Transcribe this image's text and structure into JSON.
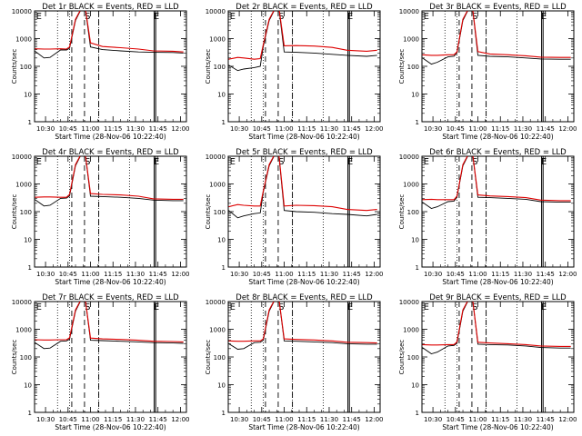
{
  "figure": {
    "xlabel": "Start Time (28-Nov-06 10:22:40)",
    "ylabel": "Counts/sec",
    "colors": {
      "events": "#000000",
      "lld": "#dd0000"
    },
    "marker_labels": [
      "E",
      "S",
      "E"
    ]
  },
  "chart_data": [
    {
      "type": "line",
      "title": "Det 1r BLACK = Events, RED = LLD",
      "x_ticks": [
        "10:30",
        "10:45",
        "11:00",
        "11:15",
        "11:30",
        "11:45",
        "12:00"
      ],
      "y_ticks": [
        "1",
        "10",
        "100",
        "1000",
        "10000"
      ],
      "ylim": [
        1,
        10000
      ],
      "yscale": "log",
      "x": [
        "10:23",
        "10:29",
        "10:33",
        "10:40",
        "10:44",
        "10:46",
        "10:50",
        "10:56",
        "11:00",
        "11:08",
        "11:20",
        "11:32",
        "11:42",
        "11:55",
        "12:02"
      ],
      "series": [
        {
          "name": "Events",
          "values": [
            350,
            200,
            210,
            390,
            390,
            450,
            4500,
            20000,
            500,
            400,
            360,
            330,
            320,
            315,
            300
          ]
        },
        {
          "name": "LLD",
          "values": [
            430,
            420,
            420,
            430,
            420,
            500,
            5000,
            20000,
            700,
            520,
            470,
            420,
            360,
            350,
            330
          ]
        }
      ]
    },
    {
      "type": "line",
      "title": "Det 2r BLACK = Events, RED = LLD",
      "x_ticks": [
        "10:30",
        "10:45",
        "11:00",
        "11:15",
        "11:30",
        "11:45",
        "12:00"
      ],
      "y_ticks": [
        "1",
        "10",
        "100",
        "1000",
        "10000"
      ],
      "ylim": [
        1,
        10000
      ],
      "yscale": "log",
      "x": [
        "10:23",
        "10:29",
        "10:33",
        "10:40",
        "10:44",
        "10:46",
        "10:50",
        "10:56",
        "11:00",
        "11:08",
        "11:20",
        "11:32",
        "11:42",
        "11:55",
        "12:02"
      ],
      "series": [
        {
          "name": "Events",
          "values": [
            110,
            70,
            80,
            90,
            100,
            520,
            4500,
            20000,
            330,
            320,
            300,
            270,
            250,
            230,
            250
          ]
        },
        {
          "name": "LLD",
          "values": [
            180,
            210,
            200,
            180,
            190,
            600,
            5000,
            20000,
            550,
            560,
            540,
            480,
            380,
            350,
            380
          ]
        }
      ]
    },
    {
      "type": "line",
      "title": "Det 3r BLACK = Events, RED = LLD",
      "x_ticks": [
        "10:30",
        "10:45",
        "11:00",
        "11:15",
        "11:30",
        "11:45",
        "12:00"
      ],
      "y_ticks": [
        "1",
        "10",
        "100",
        "1000",
        "10000"
      ],
      "ylim": [
        1,
        10000
      ],
      "yscale": "log",
      "x": [
        "10:23",
        "10:29",
        "10:33",
        "10:40",
        "10:44",
        "10:46",
        "10:50",
        "10:56",
        "11:00",
        "11:08",
        "11:20",
        "11:32",
        "11:42",
        "11:55",
        "12:02"
      ],
      "series": [
        {
          "name": "Events",
          "values": [
            200,
            120,
            140,
            220,
            230,
            300,
            4500,
            20000,
            250,
            230,
            220,
            200,
            185,
            180,
            180
          ]
        },
        {
          "name": "LLD",
          "values": [
            260,
            250,
            250,
            260,
            260,
            330,
            5000,
            20000,
            340,
            280,
            260,
            240,
            215,
            210,
            210
          ]
        }
      ]
    },
    {
      "type": "line",
      "title": "Det 4r BLACK = Events, RED = LLD",
      "x_ticks": [
        "10:30",
        "10:45",
        "11:00",
        "11:15",
        "11:30",
        "11:45",
        "12:00"
      ],
      "y_ticks": [
        "1",
        "10",
        "100",
        "1000",
        "10000"
      ],
      "ylim": [
        1,
        10000
      ],
      "yscale": "log",
      "x": [
        "10:23",
        "10:29",
        "10:33",
        "10:40",
        "10:44",
        "10:46",
        "10:50",
        "10:56",
        "11:00",
        "11:08",
        "11:20",
        "11:32",
        "11:42",
        "11:55",
        "12:02"
      ],
      "series": [
        {
          "name": "Events",
          "values": [
            270,
            160,
            170,
            300,
            310,
            370,
            4500,
            20000,
            360,
            350,
            330,
            300,
            260,
            250,
            250
          ]
        },
        {
          "name": "LLD",
          "values": [
            330,
            340,
            340,
            330,
            330,
            420,
            5000,
            20000,
            450,
            420,
            400,
            360,
            290,
            280,
            280
          ]
        }
      ]
    },
    {
      "type": "line",
      "title": "Det 5r BLACK = Events, RED = LLD",
      "x_ticks": [
        "10:30",
        "10:45",
        "11:00",
        "11:15",
        "11:30",
        "11:45",
        "12:00"
      ],
      "y_ticks": [
        "1",
        "10",
        "100",
        "1000",
        "10000"
      ],
      "ylim": [
        1,
        10000
      ],
      "yscale": "log",
      "x": [
        "10:23",
        "10:29",
        "10:33",
        "10:40",
        "10:44",
        "10:46",
        "10:50",
        "10:56",
        "11:00",
        "11:08",
        "11:20",
        "11:32",
        "11:42",
        "11:55",
        "12:02"
      ],
      "series": [
        {
          "name": "Events",
          "values": [
            110,
            60,
            70,
            85,
            90,
            500,
            4500,
            20000,
            110,
            100,
            95,
            85,
            80,
            70,
            80
          ]
        },
        {
          "name": "LLD",
          "values": [
            150,
            180,
            170,
            160,
            160,
            550,
            5000,
            20000,
            160,
            170,
            165,
            150,
            120,
            110,
            120
          ]
        }
      ]
    },
    {
      "type": "line",
      "title": "Det 6r BLACK = Events, RED = LLD",
      "x_ticks": [
        "10:30",
        "10:45",
        "11:00",
        "11:15",
        "11:30",
        "11:45",
        "12:00"
      ],
      "y_ticks": [
        "1",
        "10",
        "100",
        "1000",
        "10000"
      ],
      "ylim": [
        1,
        10000
      ],
      "yscale": "log",
      "x": [
        "10:23",
        "10:29",
        "10:33",
        "10:40",
        "10:44",
        "10:46",
        "10:50",
        "10:56",
        "11:00",
        "11:08",
        "11:20",
        "11:32",
        "11:42",
        "11:55",
        "12:02"
      ],
      "series": [
        {
          "name": "Events",
          "values": [
            220,
            130,
            150,
            230,
            240,
            330,
            4500,
            20000,
            330,
            320,
            300,
            280,
            230,
            220,
            220
          ]
        },
        {
          "name": "LLD",
          "values": [
            270,
            280,
            270,
            270,
            270,
            360,
            5000,
            20000,
            400,
            370,
            350,
            320,
            260,
            250,
            250
          ]
        }
      ]
    },
    {
      "type": "line",
      "title": "Det 7r BLACK = Events, RED = LLD",
      "x_ticks": [
        "10:30",
        "10:45",
        "11:00",
        "11:15",
        "11:30",
        "11:45",
        "12:00"
      ],
      "y_ticks": [
        "1",
        "10",
        "100",
        "1000",
        "10000"
      ],
      "ylim": [
        1,
        10000
      ],
      "yscale": "log",
      "x": [
        "10:23",
        "10:29",
        "10:33",
        "10:40",
        "10:44",
        "10:46",
        "10:50",
        "10:56",
        "11:00",
        "11:08",
        "11:20",
        "11:32",
        "11:42",
        "11:55",
        "12:02"
      ],
      "series": [
        {
          "name": "Events",
          "values": [
            330,
            200,
            210,
            370,
            380,
            440,
            4500,
            20000,
            400,
            390,
            370,
            350,
            330,
            320,
            310
          ]
        },
        {
          "name": "LLD",
          "values": [
            420,
            410,
            410,
            420,
            420,
            490,
            5000,
            20000,
            480,
            450,
            430,
            400,
            370,
            360,
            350
          ]
        }
      ]
    },
    {
      "type": "line",
      "title": "Det 8r BLACK = Events, RED = LLD",
      "x_ticks": [
        "10:30",
        "10:45",
        "11:00",
        "11:15",
        "11:30",
        "11:45",
        "12:00"
      ],
      "y_ticks": [
        "1",
        "10",
        "100",
        "1000",
        "10000"
      ],
      "ylim": [
        1,
        10000
      ],
      "yscale": "log",
      "x": [
        "10:23",
        "10:29",
        "10:33",
        "10:40",
        "10:44",
        "10:46",
        "10:50",
        "10:56",
        "11:00",
        "11:08",
        "11:20",
        "11:32",
        "11:42",
        "11:55",
        "12:02"
      ],
      "series": [
        {
          "name": "Events",
          "values": [
            300,
            190,
            200,
            330,
            340,
            400,
            4500,
            20000,
            380,
            370,
            350,
            330,
            300,
            290,
            290
          ]
        },
        {
          "name": "LLD",
          "values": [
            380,
            370,
            370,
            380,
            380,
            450,
            5000,
            20000,
            450,
            430,
            410,
            380,
            340,
            330,
            320
          ]
        }
      ]
    },
    {
      "type": "line",
      "title": "Det 9r BLACK = Events, RED = LLD",
      "x_ticks": [
        "10:30",
        "10:45",
        "11:00",
        "11:15",
        "11:30",
        "11:45",
        "12:00"
      ],
      "y_ticks": [
        "1",
        "10",
        "100",
        "1000",
        "10000"
      ],
      "ylim": [
        1,
        10000
      ],
      "yscale": "log",
      "x": [
        "10:23",
        "10:29",
        "10:33",
        "10:40",
        "10:44",
        "10:46",
        "10:50",
        "10:56",
        "11:00",
        "11:08",
        "11:20",
        "11:32",
        "11:42",
        "11:55",
        "12:02"
      ],
      "series": [
        {
          "name": "Events",
          "values": [
            220,
            130,
            150,
            250,
            260,
            310,
            4500,
            20000,
            290,
            280,
            270,
            250,
            220,
            210,
            210
          ]
        },
        {
          "name": "LLD",
          "values": [
            280,
            270,
            270,
            280,
            280,
            350,
            5000,
            20000,
            340,
            320,
            300,
            280,
            250,
            240,
            240
          ]
        }
      ]
    }
  ]
}
